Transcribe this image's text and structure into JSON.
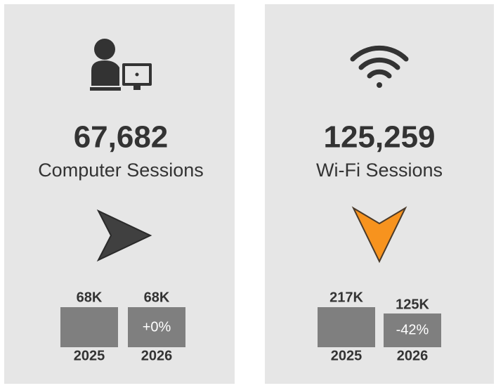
{
  "cards": [
    {
      "value": "67,682",
      "label": "Computer Sessions",
      "bars": [
        {
          "label": "68K",
          "year": "2025"
        },
        {
          "label": "68K",
          "change": "+0%",
          "year": "2026"
        }
      ]
    },
    {
      "value": "125,259",
      "label": "Wi-Fi Sessions",
      "bars": [
        {
          "label": "217K",
          "year": "2025"
        },
        {
          "label": "125K",
          "change": "-42%",
          "year": "2026"
        }
      ]
    }
  ]
}
